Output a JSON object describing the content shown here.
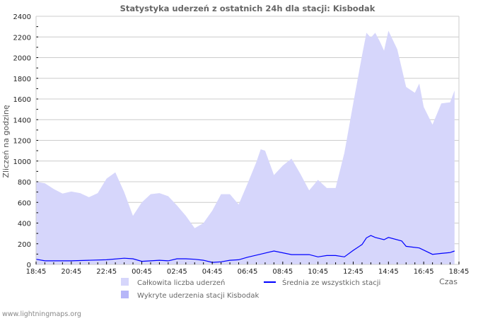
{
  "chart_data": {
    "type": "area",
    "title": "Statystyka uderzeń z ostatnich 24h dla stacji: Kisbodak",
    "xlabel": "Czas",
    "ylabel": "Zliczeń na godzinę",
    "ylim": [
      0,
      2400
    ],
    "yticks": [
      0,
      200,
      400,
      600,
      800,
      1000,
      1200,
      1400,
      1600,
      1800,
      2000,
      2200,
      2400
    ],
    "xticks": [
      "18:45",
      "20:45",
      "22:45",
      "00:45",
      "02:45",
      "04:45",
      "06:45",
      "08:45",
      "10:45",
      "12:45",
      "14:45",
      "16:45",
      "18:45"
    ],
    "x_unit": "hours since 18:45",
    "grid": true,
    "legend_position": "bottom",
    "series": [
      {
        "name": "Całkowita liczba uderzeń",
        "kind": "area",
        "color": "#d6d6fb",
        "x": [
          0,
          0.5,
          1,
          1.5,
          2,
          2.5,
          3,
          3.5,
          4,
          4.5,
          5,
          5.5,
          6,
          6.5,
          7,
          7.5,
          8,
          8.5,
          9,
          9.5,
          10,
          10.5,
          11,
          11.5,
          12,
          12.5,
          12.75,
          13,
          13.5,
          14,
          14.5,
          15,
          15.5,
          16,
          16.5,
          17,
          17.5,
          18,
          18.5,
          18.75,
          19,
          19.25,
          19.5,
          19.75,
          20,
          20.5,
          21,
          21.5,
          21.75,
          22,
          22.5,
          23,
          23.5,
          23.75
        ],
        "values": [
          800,
          785,
          730,
          685,
          705,
          690,
          650,
          690,
          830,
          890,
          700,
          470,
          600,
          680,
          690,
          660,
          570,
          470,
          350,
          400,
          520,
          680,
          680,
          580,
          780,
          990,
          1114,
          1100,
          864,
          955,
          1023,
          875,
          716,
          818,
          739,
          739,
          1080,
          1557,
          2023,
          2240,
          2193,
          2240,
          2160,
          2068,
          2260,
          2080,
          1716,
          1660,
          1750,
          1523,
          1352,
          1557,
          1568,
          1682
        ]
      },
      {
        "name": "Wykryte uderzenia stacji Kisbodak",
        "kind": "area",
        "color": "#b6b6f8",
        "x": [],
        "values": []
      },
      {
        "name": "Średnia ze wszystkich stacji",
        "kind": "line",
        "color": "#0000ff",
        "x": [
          0,
          0.5,
          1,
          2,
          3,
          4,
          5,
          5.5,
          6,
          6.5,
          7,
          7.5,
          8,
          8.5,
          9,
          9.5,
          10,
          10.5,
          11,
          11.5,
          12,
          12.75,
          13.5,
          14.5,
          15.5,
          16,
          16.5,
          17,
          17.5,
          18,
          18.5,
          18.75,
          19,
          19.25,
          19.75,
          20,
          20.75,
          21,
          21.75,
          22.5,
          23,
          23.5,
          23.75
        ],
        "values": [
          50,
          35,
          35,
          35,
          40,
          45,
          60,
          55,
          30,
          35,
          40,
          35,
          55,
          55,
          50,
          40,
          20,
          25,
          40,
          45,
          70,
          100,
          130,
          95,
          95,
          73,
          86,
          86,
          73,
          136,
          193,
          257,
          280,
          261,
          239,
          261,
          227,
          175,
          159,
          98,
          107,
          115,
          130
        ]
      }
    ]
  },
  "watermark": "www.lightningmaps.org"
}
